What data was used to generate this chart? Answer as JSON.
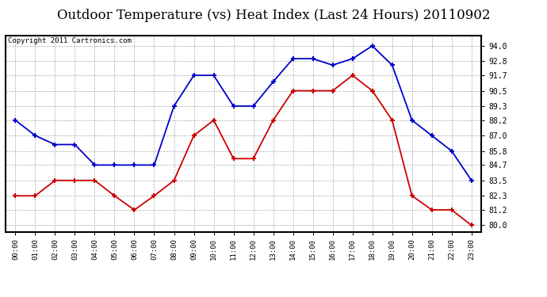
{
  "title": "Outdoor Temperature (vs) Heat Index (Last 24 Hours) 20110902",
  "copyright": "Copyright 2011 Cartronics.com",
  "x_labels": [
    "00:00",
    "01:00",
    "02:00",
    "03:00",
    "04:00",
    "05:00",
    "06:00",
    "07:00",
    "08:00",
    "09:00",
    "10:00",
    "11:00",
    "12:00",
    "13:00",
    "14:00",
    "15:00",
    "16:00",
    "17:00",
    "18:00",
    "19:00",
    "20:00",
    "21:00",
    "22:00",
    "23:00"
  ],
  "blue_data": [
    88.2,
    87.0,
    86.3,
    86.3,
    84.7,
    84.7,
    84.7,
    84.7,
    89.3,
    91.7,
    91.7,
    89.3,
    89.3,
    91.2,
    93.0,
    93.0,
    92.5,
    93.0,
    94.0,
    92.5,
    88.2,
    87.0,
    85.8,
    83.5
  ],
  "red_data": [
    82.3,
    82.3,
    83.5,
    83.5,
    83.5,
    82.3,
    81.2,
    82.3,
    83.5,
    87.0,
    88.2,
    85.2,
    85.2,
    88.2,
    90.5,
    90.5,
    90.5,
    91.7,
    90.5,
    88.2,
    82.3,
    81.2,
    81.2,
    80.0
  ],
  "blue_color": "#0000cc",
  "red_color": "#cc0000",
  "yticks": [
    80.0,
    81.2,
    82.3,
    83.5,
    84.7,
    85.8,
    87.0,
    88.2,
    89.3,
    90.5,
    91.7,
    92.8,
    94.0
  ],
  "ylim": [
    79.5,
    94.8
  ],
  "bg_color": "#ffffff",
  "grid_color": "#aaaaaa",
  "title_fontsize": 12,
  "copyright_fontsize": 6.5
}
